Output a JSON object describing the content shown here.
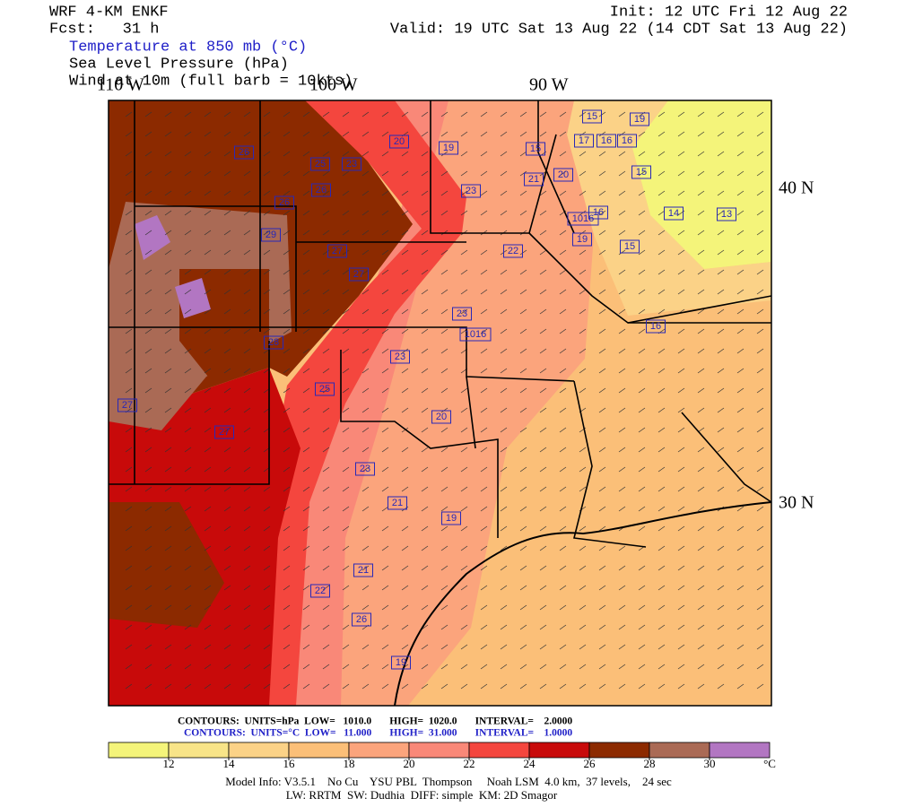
{
  "header": {
    "model": "WRF 4-KM ENKF",
    "forecast": "Fcst:   31 h",
    "init": "Init: 12 UTC Fri 12 Aug 22",
    "valid": "Valid: 19 UTC Sat 13 Aug 22 (14 CDT Sat 13 Aug 22)",
    "fields": [
      "Temperature at 850 mb (°C)",
      "Sea Level Pressure (hPa)",
      "Wind at 10m (full barb = 10kts)"
    ]
  },
  "map_axes": {
    "lon": [
      "110 W",
      "100 W",
      "90 W"
    ],
    "lat": [
      "40 N",
      "30 N"
    ]
  },
  "map_labels": [
    "15",
    "19",
    "20",
    "19",
    "15",
    "17",
    "16",
    "16",
    "15",
    "20",
    "21",
    "23",
    "14",
    "13",
    "16",
    "1016",
    "19",
    "15",
    "22",
    "23",
    "16",
    "1016",
    "23",
    "20",
    "23",
    "21",
    "19",
    "21",
    "22",
    "26",
    "19",
    "27",
    "27",
    "29",
    "27",
    "27",
    "26",
    "26",
    "23",
    "25",
    "26",
    "28",
    "25"
  ],
  "contours": {
    "slp": "CONTOURS:  UNITS=hPa  LOW=   1010.0       HIGH=  1020.0       INTERVAL=    2.0000",
    "temp": "CONTOURS:  UNITS=°C  LOW=   11.000       HIGH=  31.000       INTERVAL=    1.0000"
  },
  "colorbar": {
    "ticks": [
      12,
      14,
      16,
      18,
      20,
      22,
      24,
      26,
      28,
      30
    ],
    "unit": "°C",
    "colors": [
      "#f4f47a",
      "#f8e488",
      "#fbd287",
      "#fbbf78",
      "#fba47c",
      "#f98878",
      "#f4463e",
      "#c80a0a",
      "#8c2a00",
      "#aa6a55",
      "#b276c2"
    ]
  },
  "footer": [
    "Model Info: V3.5.1    No Cu    YSU PBL  Thompson     Noah LSM  4.0 km,  37 levels,    24 sec",
    "LW: RRTM  SW: Dudhia  DIFF: simple  KM: 2D Smagor"
  ]
}
